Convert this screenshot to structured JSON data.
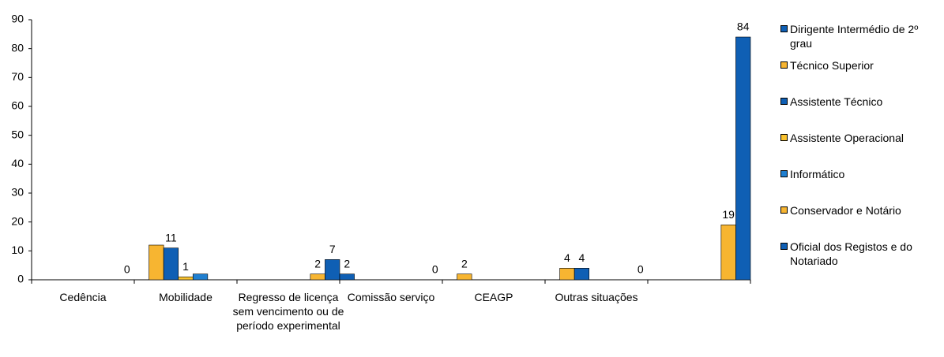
{
  "chart_data": {
    "type": "bar",
    "categories": [
      "Cedência",
      "Mobilidade",
      "Regresso de licença sem vencimento ou de período experimental",
      "Comissão serviço",
      "CEAGP",
      "Outras situações",
      null
    ],
    "series": [
      {
        "name": "Dirigente Intermédio de 2º grau",
        "color": "#0f5fb4",
        "values": [
          null,
          null,
          null,
          2,
          null,
          null,
          null
        ]
      },
      {
        "name": "Técnico Superior",
        "color": "#f7b531",
        "values": [
          null,
          12,
          null,
          null,
          2,
          4,
          null
        ],
        "value_labels": [
          null,
          null,
          null,
          null,
          "2",
          "4",
          null
        ]
      },
      {
        "name": "Assistente Técnico",
        "color": "#0f5fb4",
        "values": [
          null,
          11,
          null,
          null,
          null,
          4,
          null
        ]
      },
      {
        "name": "Assistente Operacional",
        "color": "#f9c22e",
        "values": [
          null,
          1,
          null,
          null,
          null,
          null,
          null
        ]
      },
      {
        "name": "Informático",
        "color": "#1f7fd0",
        "values": [
          null,
          2,
          null,
          null,
          null,
          null,
          null
        ],
        "value_labels": [
          null,
          null,
          null,
          null,
          null,
          null,
          null
        ]
      },
      {
        "name": "Conservador e Notário",
        "color": "#f7b531",
        "values": [
          null,
          null,
          2,
          null,
          null,
          null,
          19
        ]
      },
      {
        "name": "Oficial dos Registos e do Notariado",
        "color": "#0f5fb4",
        "values": [
          0,
          null,
          7,
          0,
          null,
          0,
          84
        ]
      }
    ],
    "ylim": [
      0,
      90
    ],
    "yticks": [
      0,
      10,
      20,
      30,
      40,
      50,
      60,
      70,
      80,
      90
    ],
    "legend": "right"
  }
}
